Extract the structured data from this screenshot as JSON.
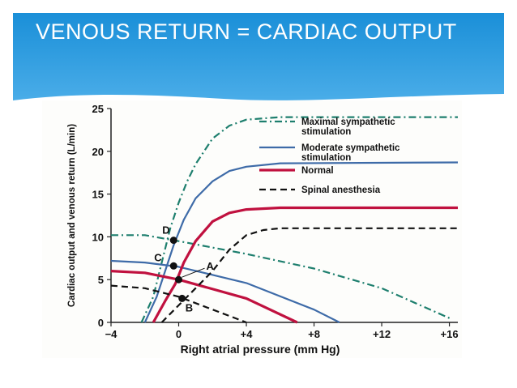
{
  "slide": {
    "title": "VENOUS RETURN = CARDIAC OUTPUT"
  },
  "colors": {
    "banner": "#2a9be0",
    "maximal": "#1e7f6e",
    "moderate": "#3e6ba8",
    "normal": "#c0113f",
    "spinal": "#111111"
  },
  "chart_data": {
    "type": "line",
    "xlabel": "Right atrial pressure (mm Hg)",
    "ylabel": "Cardiac output and venous return (L/min)",
    "xlim": [
      -4,
      16.5
    ],
    "ylim": [
      0,
      25
    ],
    "x_ticks": [
      "−4",
      "0",
      "+4",
      "+8",
      "+12",
      "+16"
    ],
    "x_tick_values": [
      -4,
      0,
      4,
      8,
      12,
      16
    ],
    "y_ticks": [
      "0",
      "5",
      "10",
      "15",
      "20",
      "25"
    ],
    "y_tick_values": [
      0,
      5,
      10,
      15,
      20,
      25
    ],
    "grid": false,
    "legend_position": "top-right",
    "series": [
      {
        "name": "Maximal sympathetic stimulation",
        "style": "dash-dot",
        "color": "#1e7f6e",
        "cardiac_output": [
          [
            -2.2,
            0
          ],
          [
            -1.5,
            3
          ],
          [
            -1,
            7
          ],
          [
            -0.5,
            11
          ],
          [
            0,
            14
          ],
          [
            0.5,
            16.5
          ],
          [
            1,
            18.5
          ],
          [
            2,
            21.5
          ],
          [
            3,
            23
          ],
          [
            4,
            23.7
          ],
          [
            6,
            24
          ],
          [
            16.5,
            24
          ]
        ],
        "venous_return": [
          [
            -4,
            10.2
          ],
          [
            -2,
            10.2
          ],
          [
            0,
            9.5
          ],
          [
            4,
            8
          ],
          [
            8,
            6.3
          ],
          [
            12,
            4
          ],
          [
            16,
            0.5
          ]
        ]
      },
      {
        "name": "Moderate sympathetic stimulation",
        "style": "solid",
        "color": "#3e6ba8",
        "cardiac_output": [
          [
            -2,
            0
          ],
          [
            -1.3,
            3
          ],
          [
            -0.8,
            6
          ],
          [
            -0.3,
            9
          ],
          [
            0.3,
            12
          ],
          [
            1,
            14.5
          ],
          [
            2,
            16.5
          ],
          [
            3,
            17.7
          ],
          [
            4,
            18.2
          ],
          [
            6,
            18.6
          ],
          [
            16.5,
            18.7
          ]
        ],
        "venous_return": [
          [
            -4,
            7.2
          ],
          [
            -2,
            7
          ],
          [
            0,
            6.5
          ],
          [
            4,
            4.6
          ],
          [
            8,
            1.5
          ],
          [
            9.5,
            0
          ]
        ]
      },
      {
        "name": "Normal",
        "style": "solid",
        "color": "#c0113f",
        "cardiac_output": [
          [
            -1.5,
            0
          ],
          [
            -0.8,
            2.5
          ],
          [
            -0.2,
            4.5
          ],
          [
            0.3,
            7
          ],
          [
            1,
            9.5
          ],
          [
            2,
            11.8
          ],
          [
            3,
            12.8
          ],
          [
            4,
            13.2
          ],
          [
            6,
            13.4
          ],
          [
            16.5,
            13.4
          ]
        ],
        "venous_return": [
          [
            -4,
            6
          ],
          [
            -2,
            5.8
          ],
          [
            0,
            5
          ],
          [
            4,
            2.8
          ],
          [
            7,
            0
          ]
        ]
      },
      {
        "name": "Spinal anesthesia",
        "style": "dashed",
        "color": "#111111",
        "cardiac_output": [
          [
            -1,
            0
          ],
          [
            0,
            2
          ],
          [
            1,
            4
          ],
          [
            2,
            6
          ],
          [
            3,
            8.5
          ],
          [
            4,
            10.2
          ],
          [
            5,
            10.8
          ],
          [
            6,
            11
          ],
          [
            16.5,
            11
          ]
        ],
        "venous_return": [
          [
            -4,
            4.3
          ],
          [
            -2,
            4
          ],
          [
            0,
            3
          ],
          [
            4,
            0
          ]
        ]
      }
    ],
    "equilibrium_points": [
      {
        "label": "D",
        "x": -0.3,
        "y": 9.6
      },
      {
        "label": "C",
        "x": -0.3,
        "y": 6.6
      },
      {
        "label": "A",
        "x": 0,
        "y": 5
      },
      {
        "label": "B",
        "x": 0.2,
        "y": 2.8
      }
    ]
  }
}
